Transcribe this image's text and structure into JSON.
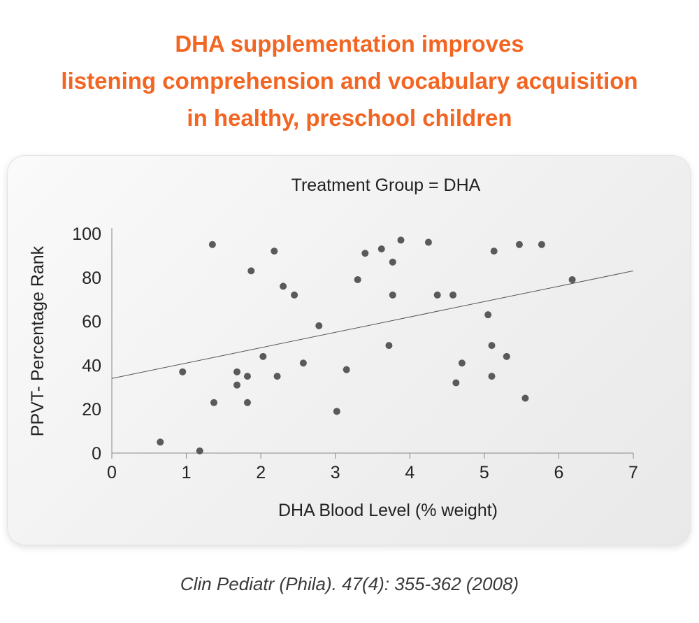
{
  "headline": {
    "line1": "DHA supplementation improves",
    "line2": "listening comprehension and vocabulary acquisition",
    "line3": "in healthy, preschool children"
  },
  "citation": "Clin Pediatr (Phila). 47(4): 355-362 (2008)",
  "colors": {
    "accent": "#f26522",
    "points": "#5a5a5a",
    "line": "#555555",
    "text": "#222222"
  },
  "chart_data": {
    "type": "scatter",
    "title": "Treatment Group = DHA",
    "xlabel": "DHA Blood Level (% weight)",
    "ylabel": "PPVT- Percentage Rank",
    "xlim": [
      0,
      7
    ],
    "ylim": [
      0,
      100
    ],
    "xticks": [
      "0",
      "1",
      "2",
      "3",
      "4",
      "5",
      "6",
      "7"
    ],
    "yticks": [
      "0",
      "20",
      "40",
      "60",
      "80",
      "100"
    ],
    "grid": false,
    "points": [
      {
        "x": 0.65,
        "y": 5
      },
      {
        "x": 0.95,
        "y": 37
      },
      {
        "x": 1.18,
        "y": 1
      },
      {
        "x": 1.35,
        "y": 95
      },
      {
        "x": 1.37,
        "y": 23
      },
      {
        "x": 1.68,
        "y": 37
      },
      {
        "x": 1.68,
        "y": 31
      },
      {
        "x": 1.82,
        "y": 35
      },
      {
        "x": 1.82,
        "y": 23
      },
      {
        "x": 1.87,
        "y": 83
      },
      {
        "x": 2.03,
        "y": 44
      },
      {
        "x": 2.18,
        "y": 92
      },
      {
        "x": 2.22,
        "y": 35
      },
      {
        "x": 2.3,
        "y": 76
      },
      {
        "x": 2.45,
        "y": 72
      },
      {
        "x": 2.57,
        "y": 41
      },
      {
        "x": 2.78,
        "y": 58
      },
      {
        "x": 3.02,
        "y": 19
      },
      {
        "x": 3.15,
        "y": 38
      },
      {
        "x": 3.3,
        "y": 79
      },
      {
        "x": 3.4,
        "y": 91
      },
      {
        "x": 3.62,
        "y": 93
      },
      {
        "x": 3.72,
        "y": 49
      },
      {
        "x": 3.77,
        "y": 87
      },
      {
        "x": 3.77,
        "y": 72
      },
      {
        "x": 3.88,
        "y": 97
      },
      {
        "x": 4.25,
        "y": 96
      },
      {
        "x": 4.37,
        "y": 72
      },
      {
        "x": 4.58,
        "y": 72
      },
      {
        "x": 4.62,
        "y": 32
      },
      {
        "x": 4.7,
        "y": 41
      },
      {
        "x": 5.05,
        "y": 63
      },
      {
        "x": 5.1,
        "y": 49
      },
      {
        "x": 5.1,
        "y": 35
      },
      {
        "x": 5.13,
        "y": 92
      },
      {
        "x": 5.3,
        "y": 44
      },
      {
        "x": 5.47,
        "y": 95
      },
      {
        "x": 5.55,
        "y": 25
      },
      {
        "x": 5.77,
        "y": 95
      },
      {
        "x": 6.18,
        "y": 79
      }
    ],
    "trendline": {
      "x": [
        0,
        7
      ],
      "y": [
        34,
        83
      ]
    }
  }
}
